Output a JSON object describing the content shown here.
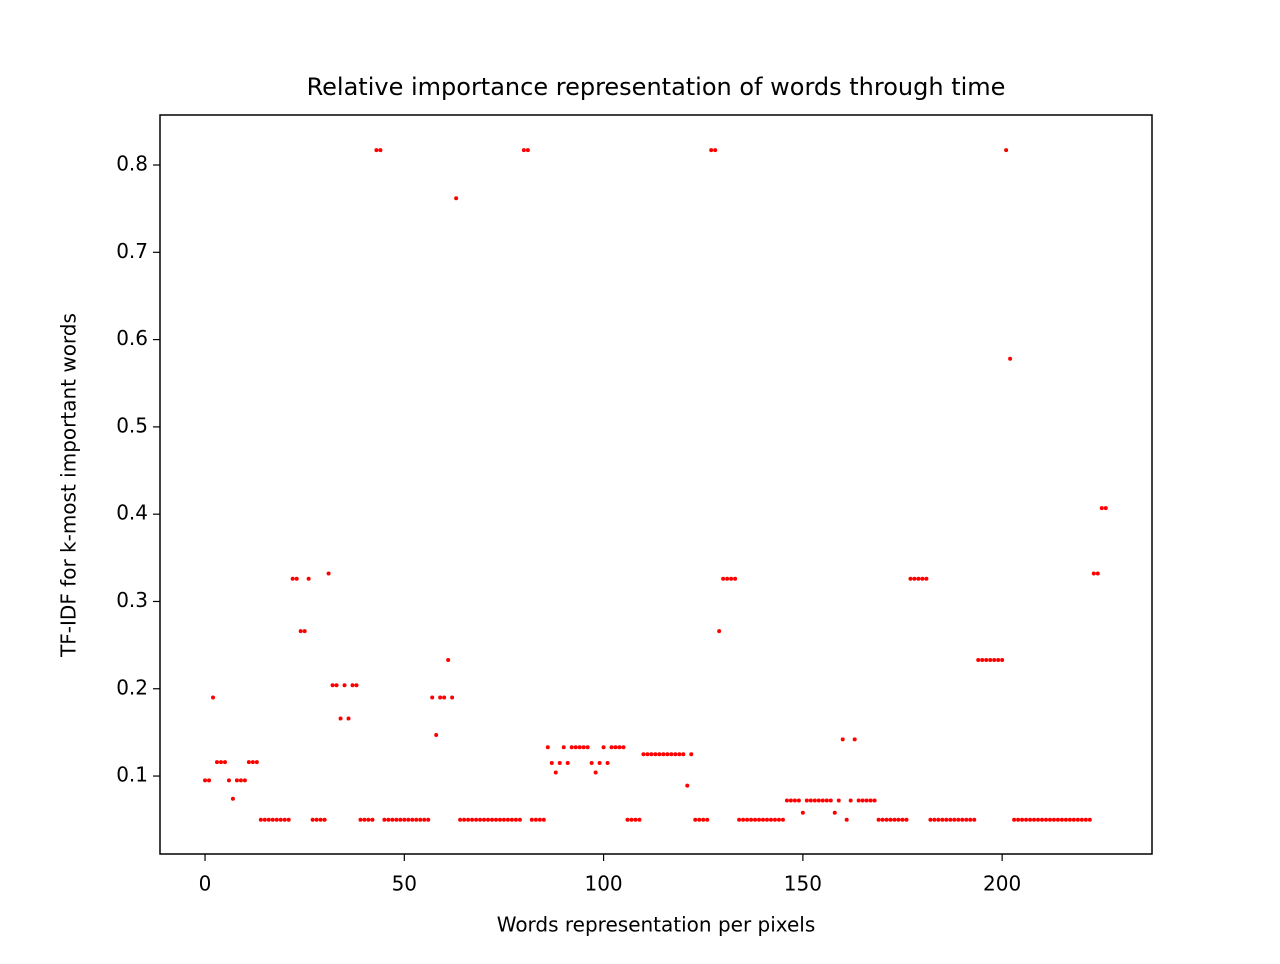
{
  "chart_data": {
    "type": "scatter",
    "title": "Relative importance representation of words through time",
    "x_label": "Words representation per pixels",
    "y_label": "TF-IDF for k-most important words",
    "color": "#ff0000",
    "xlim": [
      -11.3,
      237.6
    ],
    "ylim": [
      0.0107,
      0.8573
    ],
    "xticks": [
      0,
      50,
      100,
      150,
      200
    ],
    "yticks": [
      0.1,
      0.2,
      0.3,
      0.4,
      0.5,
      0.6,
      0.7,
      0.8
    ],
    "x": [
      0,
      1,
      2,
      3,
      4,
      5,
      6,
      7,
      8,
      9,
      10,
      11,
      12,
      13,
      14,
      15,
      16,
      17,
      18,
      19,
      20,
      21,
      22,
      23,
      24,
      25,
      26,
      27,
      28,
      29,
      30,
      31,
      32,
      33,
      34,
      35,
      36,
      37,
      38,
      39,
      40,
      41,
      42,
      43,
      44,
      45,
      46,
      47,
      48,
      49,
      50,
      51,
      52,
      53,
      54,
      55,
      56,
      57,
      58,
      59,
      60,
      61,
      62,
      63,
      64,
      65,
      66,
      67,
      68,
      69,
      70,
      71,
      72,
      73,
      74,
      75,
      76,
      77,
      78,
      79,
      80,
      81,
      82,
      83,
      84,
      85,
      86,
      87,
      88,
      89,
      90,
      91,
      92,
      93,
      94,
      95,
      96,
      97,
      98,
      99,
      100,
      101,
      102,
      103,
      104,
      105,
      106,
      107,
      108,
      109,
      110,
      111,
      112,
      113,
      114,
      115,
      116,
      117,
      118,
      119,
      120,
      121,
      122,
      123,
      124,
      125,
      126,
      127,
      128,
      129,
      130,
      131,
      132,
      133,
      134,
      135,
      136,
      137,
      138,
      139,
      140,
      141,
      142,
      143,
      144,
      145,
      146,
      147,
      148,
      149,
      150,
      151,
      152,
      153,
      154,
      155,
      156,
      157,
      158,
      159,
      160,
      161,
      162,
      163,
      164,
      165,
      166,
      167,
      168,
      169,
      170,
      171,
      172,
      173,
      174,
      175,
      176,
      177,
      178,
      179,
      180,
      181,
      182,
      183,
      184,
      185,
      186,
      187,
      188,
      189,
      190,
      191,
      192,
      193,
      194,
      195,
      196,
      197,
      198,
      199,
      200,
      201,
      202,
      203,
      204,
      205,
      206,
      207,
      208,
      209,
      210,
      211,
      212,
      213,
      214,
      215,
      216,
      217,
      218,
      219,
      220,
      221,
      222,
      223,
      224,
      225,
      226
    ],
    "values": [
      0.095,
      0.095,
      0.19,
      0.116,
      0.116,
      0.116,
      0.095,
      0.074,
      0.095,
      0.095,
      0.095,
      0.116,
      0.116,
      0.116,
      0.05,
      0.05,
      0.05,
      0.05,
      0.05,
      0.05,
      0.05,
      0.05,
      0.326,
      0.326,
      0.266,
      0.266,
      0.326,
      0.05,
      0.05,
      0.05,
      0.05,
      0.332,
      0.204,
      0.204,
      0.166,
      0.204,
      0.166,
      0.204,
      0.204,
      0.05,
      0.05,
      0.05,
      0.05,
      0.817,
      0.817,
      0.05,
      0.05,
      0.05,
      0.05,
      0.05,
      0.05,
      0.05,
      0.05,
      0.05,
      0.05,
      0.05,
      0.05,
      0.19,
      0.147,
      0.19,
      0.19,
      0.233,
      0.19,
      0.762,
      0.05,
      0.05,
      0.05,
      0.05,
      0.05,
      0.05,
      0.05,
      0.05,
      0.05,
      0.05,
      0.05,
      0.05,
      0.05,
      0.05,
      0.05,
      0.05,
      0.817,
      0.817,
      0.05,
      0.05,
      0.05,
      0.05,
      0.133,
      0.115,
      0.104,
      0.115,
      0.133,
      0.115,
      0.133,
      0.133,
      0.133,
      0.133,
      0.133,
      0.115,
      0.104,
      0.115,
      0.133,
      0.115,
      0.133,
      0.133,
      0.133,
      0.133,
      0.05,
      0.05,
      0.05,
      0.05,
      0.125,
      0.125,
      0.125,
      0.125,
      0.125,
      0.125,
      0.125,
      0.125,
      0.125,
      0.125,
      0.125,
      0.089,
      0.125,
      0.05,
      0.05,
      0.05,
      0.05,
      0.817,
      0.817,
      0.266,
      0.326,
      0.326,
      0.326,
      0.326,
      0.05,
      0.05,
      0.05,
      0.05,
      0.05,
      0.05,
      0.05,
      0.05,
      0.05,
      0.05,
      0.05,
      0.05,
      0.072,
      0.072,
      0.072,
      0.072,
      0.058,
      0.072,
      0.072,
      0.072,
      0.072,
      0.072,
      0.072,
      0.072,
      0.058,
      0.072,
      0.142,
      0.05,
      0.072,
      0.142,
      0.072,
      0.072,
      0.072,
      0.072,
      0.072,
      0.05,
      0.05,
      0.05,
      0.05,
      0.05,
      0.05,
      0.05,
      0.05,
      0.326,
      0.326,
      0.326,
      0.326,
      0.326,
      0.05,
      0.05,
      0.05,
      0.05,
      0.05,
      0.05,
      0.05,
      0.05,
      0.05,
      0.05,
      0.05,
      0.05,
      0.233,
      0.233,
      0.233,
      0.233,
      0.233,
      0.233,
      0.233,
      0.817,
      0.578,
      0.05,
      0.05,
      0.05,
      0.05,
      0.05,
      0.05,
      0.05,
      0.05,
      0.05,
      0.05,
      0.05,
      0.05,
      0.05,
      0.05,
      0.05,
      0.05,
      0.05,
      0.05,
      0.05,
      0.05,
      0.332,
      0.332,
      0.407,
      0.407
    ]
  }
}
